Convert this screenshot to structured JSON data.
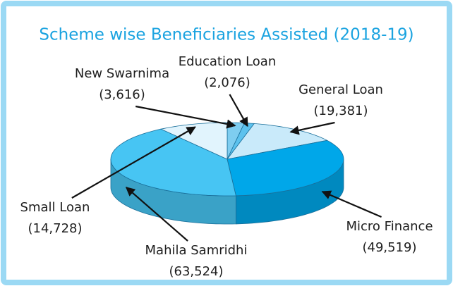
{
  "chart_data": {
    "type": "pie",
    "title": "Scheme wise Beneficiaries Assisted (2018-19)",
    "categories": [
      "New Swarnima",
      "Education Loan",
      "General Loan",
      "Micro Finance",
      "Mahila Samridhi",
      "Small Loan"
    ],
    "values": [
      3616,
      2076,
      19381,
      49519,
      63524,
      14728
    ],
    "value_labels": [
      "(3,616)",
      "(2,076)",
      "(19,381)",
      "(49,519)",
      "(63,524)",
      "(14,728)"
    ],
    "colors": [
      "#7ecdf0",
      "#5cc2ee",
      "#c9eafa",
      "#00a7e9",
      "#47c5f3",
      "#e1f4fd"
    ]
  }
}
